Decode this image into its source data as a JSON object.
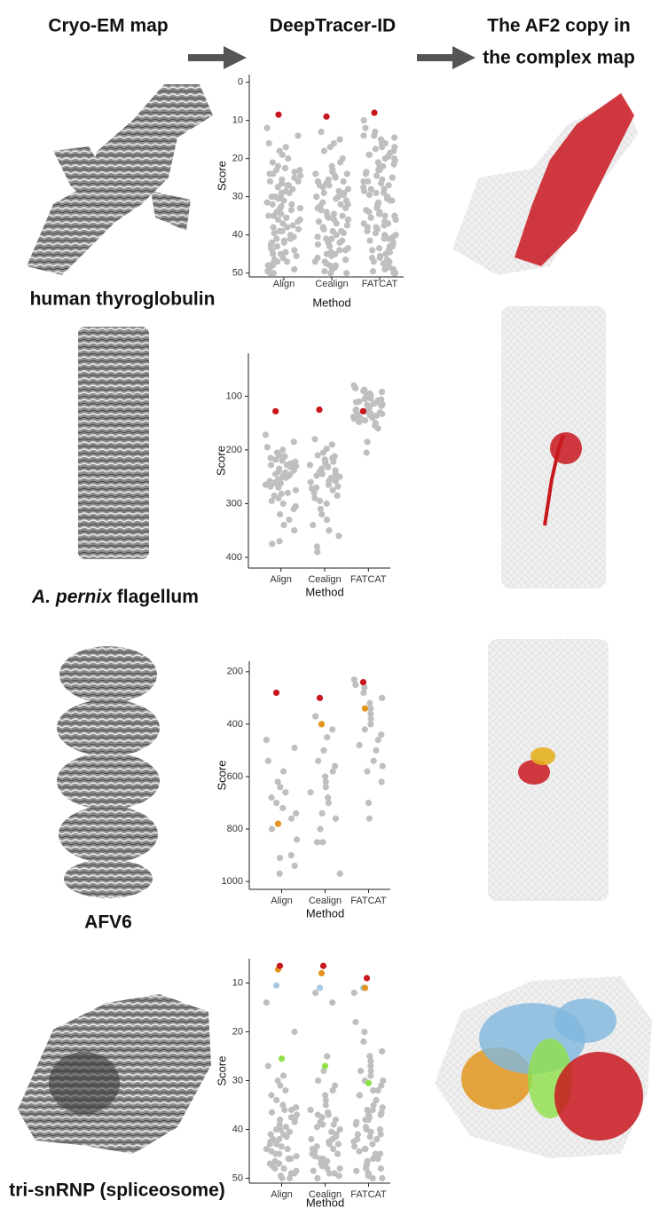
{
  "header": {
    "left": "Cryo-EM map",
    "middle": "DeepTracer-ID",
    "right": [
      "The AF2 copy in",
      "the complex map"
    ]
  },
  "labels": {
    "row1": "human thyroglobulin",
    "row2": {
      "italic": "A. pernix",
      "rest": "flagellum"
    },
    "row3": "AFV6",
    "row4": "tri-snRNP (spliceosome)"
  },
  "chart_data": [
    {
      "type": "strip",
      "x_label": "Method",
      "y_label": "Score",
      "categories": [
        "Align",
        "Cealign",
        "FATCAT"
      ],
      "ylim": [
        -2,
        51
      ],
      "y_reversed": true,
      "yticks": [
        0,
        10,
        20,
        30,
        40,
        50
      ],
      "point_color": "#bfbfbf",
      "values": [
        [
          12,
          14,
          16,
          17,
          18,
          19,
          20,
          21,
          22,
          22.5,
          23,
          23.5,
          24,
          24.5,
          25,
          25.5,
          26,
          26.5,
          27,
          27.5,
          28,
          28.5,
          29,
          29.5,
          30,
          30.5,
          31,
          31.5,
          32,
          32.5,
          33,
          33.5,
          34,
          34.5,
          35,
          35.5,
          36,
          36.5,
          37,
          37.5,
          38,
          38.5,
          39,
          39.5,
          40,
          40.5,
          41,
          41.5,
          42,
          42.5,
          43,
          43.5,
          44,
          44.5,
          45,
          45.5,
          46,
          46.5,
          47,
          47.5,
          48,
          48.5,
          49,
          49.5,
          50,
          24,
          27,
          30,
          33,
          36,
          39,
          42,
          45,
          48,
          50,
          47,
          44,
          41,
          38,
          35,
          32,
          29,
          26,
          23
        ],
        [
          13,
          15,
          16,
          17,
          18,
          20,
          21,
          22,
          23,
          23.5,
          24,
          24.5,
          25,
          25.5,
          26,
          26.5,
          27,
          27.5,
          28,
          28.5,
          29,
          29.5,
          30,
          30.5,
          31,
          31.5,
          32,
          32.5,
          33,
          33.5,
          34,
          34.5,
          35,
          35.5,
          36,
          36.5,
          37,
          37.5,
          38,
          38.5,
          39,
          39.5,
          40,
          40.5,
          41,
          41.5,
          42,
          42.5,
          43,
          43.5,
          44,
          44.5,
          45,
          45.5,
          46,
          46.5,
          47,
          47.5,
          48,
          48.5,
          49,
          49.5,
          50,
          24,
          27,
          30,
          33,
          36,
          39,
          42,
          45,
          48,
          50,
          47,
          44,
          41,
          38,
          35,
          32,
          29,
          26
        ],
        [
          10,
          12,
          13,
          14,
          14.5,
          15,
          15.5,
          16,
          16.5,
          17,
          17.5,
          18,
          18.5,
          19,
          19.5,
          20,
          20.5,
          21,
          21.5,
          22,
          22.5,
          23,
          23.5,
          24,
          24.5,
          25,
          25.5,
          26,
          26.5,
          27,
          27.5,
          28,
          28.5,
          29,
          29.5,
          30,
          30.5,
          31,
          31.5,
          32,
          32.5,
          33,
          33.5,
          34,
          34.5,
          35,
          35.5,
          36,
          36.5,
          37,
          37.5,
          38,
          38.5,
          39,
          39.5,
          40,
          40.5,
          41,
          41.5,
          42,
          42.5,
          43,
          43.5,
          44,
          44.5,
          45,
          45.5,
          46,
          46.5,
          47,
          47.5,
          48,
          48.5,
          49,
          49.5,
          50,
          16,
          19,
          22,
          25,
          28,
          31,
          34,
          37,
          40,
          43,
          46,
          49,
          50,
          47,
          44,
          41,
          38,
          35,
          32,
          29,
          26,
          23,
          20,
          17,
          14
        ]
      ],
      "highlights": [
        {
          "color": "#c8171e",
          "values": [
            8.5,
            9,
            8
          ]
        }
      ]
    },
    {
      "type": "strip",
      "x_label": "Method",
      "y_label": "Score",
      "categories": [
        "Align",
        "Cealign",
        "FATCAT"
      ],
      "ylim": [
        20,
        420
      ],
      "y_reversed": true,
      "yticks": [
        100,
        200,
        300,
        400
      ],
      "point_color": "#bfbfbf",
      "values": [
        [
          172,
          185,
          195,
          200,
          205,
          210,
          212,
          215,
          218,
          220,
          222,
          225,
          228,
          230,
          232,
          235,
          238,
          240,
          242,
          245,
          248,
          250,
          252,
          255,
          258,
          260,
          262,
          265,
          268,
          270,
          275,
          280,
          285,
          290,
          295,
          300,
          305,
          310,
          320,
          330,
          340,
          350,
          370,
          375,
          228,
          246,
          262,
          282
        ],
        [
          180,
          190,
          198,
          205,
          210,
          212,
          215,
          218,
          220,
          225,
          228,
          230,
          232,
          235,
          238,
          240,
          245,
          248,
          250,
          252,
          255,
          258,
          260,
          265,
          268,
          270,
          275,
          280,
          285,
          290,
          295,
          300,
          310,
          320,
          330,
          340,
          350,
          360,
          380,
          390,
          222,
          244,
          258,
          272
        ],
        [
          80,
          85,
          88,
          90,
          92,
          95,
          98,
          100,
          102,
          104,
          105,
          106,
          108,
          110,
          112,
          114,
          115,
          116,
          118,
          120,
          122,
          124,
          125,
          126,
          128,
          130,
          132,
          134,
          135,
          136,
          138,
          140,
          142,
          145,
          148,
          150,
          155,
          160,
          185,
          205,
          96,
          103,
          111,
          119,
          127,
          133,
          141
        ]
      ],
      "highlights": [
        {
          "color": "#c8171e",
          "values": [
            128,
            125,
            128
          ]
        }
      ]
    },
    {
      "type": "strip",
      "x_label": "Method",
      "y_label": "Score",
      "categories": [
        "Align",
        "Cealign",
        "FATCAT"
      ],
      "ylim": [
        160,
        1030
      ],
      "y_reversed": true,
      "yticks": [
        200,
        400,
        600,
        800,
        1000
      ],
      "point_color": "#bfbfbf",
      "values": [
        [
          460,
          490,
          540,
          580,
          620,
          640,
          660,
          680,
          700,
          720,
          740,
          760,
          800,
          840,
          900,
          910,
          940,
          970
        ],
        [
          370,
          420,
          450,
          500,
          540,
          560,
          580,
          600,
          620,
          640,
          660,
          680,
          700,
          740,
          760,
          800,
          850,
          850,
          970
        ],
        [
          230,
          250,
          260,
          280,
          300,
          320,
          340,
          360,
          380,
          400,
          420,
          440,
          460,
          480,
          500,
          540,
          560,
          580,
          620,
          700,
          760
        ]
      ],
      "highlights": [
        {
          "color": "#c8171e",
          "values": [
            280,
            300,
            240
          ]
        },
        {
          "color": "#e3951f",
          "values": [
            780,
            400,
            340
          ]
        }
      ]
    },
    {
      "type": "strip",
      "x_label": "Method",
      "y_label": "Score",
      "categories": [
        "Align",
        "Cealign",
        "FATCAT"
      ],
      "ylim": [
        5,
        51
      ],
      "y_reversed": true,
      "yticks": [
        10,
        20,
        30,
        40,
        50
      ],
      "point_color": "#bfbfbf",
      "values": [
        [
          14,
          20,
          27,
          29,
          30,
          31,
          32,
          33,
          34,
          35,
          35.5,
          36,
          36.5,
          37,
          37.5,
          38,
          38.5,
          39,
          39.5,
          40,
          40.5,
          41,
          41.5,
          42,
          42.5,
          43,
          43.5,
          44,
          44.5,
          45,
          45.5,
          46,
          46.5,
          47,
          47.5,
          48,
          48.5,
          49,
          49.5,
          50,
          36,
          38,
          40,
          42,
          44,
          46,
          48,
          50,
          41,
          43,
          45,
          47,
          49
        ],
        [
          12,
          14,
          25,
          28,
          30,
          31,
          32,
          33,
          34,
          35,
          36,
          36.5,
          37,
          37.5,
          38,
          38.5,
          39,
          39.5,
          40,
          40.5,
          41,
          41.5,
          42,
          42.5,
          43,
          43.5,
          44,
          44.5,
          45,
          45.5,
          46,
          46.5,
          47,
          47.5,
          48,
          48.5,
          49,
          49.5,
          50,
          37,
          39,
          41,
          43,
          45,
          47,
          49,
          42,
          44,
          46,
          48
        ],
        [
          12,
          18,
          20,
          22,
          24,
          25,
          26,
          27,
          28,
          29,
          30,
          31,
          32,
          33,
          34,
          35,
          35.5,
          36,
          36.5,
          37,
          37.5,
          38,
          38.5,
          39,
          39.5,
          40,
          40.5,
          41,
          41.5,
          42,
          42.5,
          43,
          43.5,
          44,
          44.5,
          45,
          45.5,
          46,
          46.5,
          47,
          47.5,
          48,
          48.5,
          49,
          49.5,
          50,
          28,
          30,
          32,
          34,
          36,
          38,
          40,
          42,
          44,
          46,
          48,
          50,
          33,
          37,
          41,
          45,
          49
        ]
      ],
      "highlights": [
        {
          "color": "#a9c9df",
          "values": [
            10.5,
            11,
            11
          ]
        },
        {
          "color": "#e3951f",
          "values": [
            7.2,
            8,
            11
          ]
        },
        {
          "color": "#c8171e",
          "values": [
            6.5,
            6.5,
            9
          ]
        },
        {
          "color": "#8ee04a",
          "values": [
            25.5,
            27,
            30.5
          ]
        }
      ]
    }
  ]
}
